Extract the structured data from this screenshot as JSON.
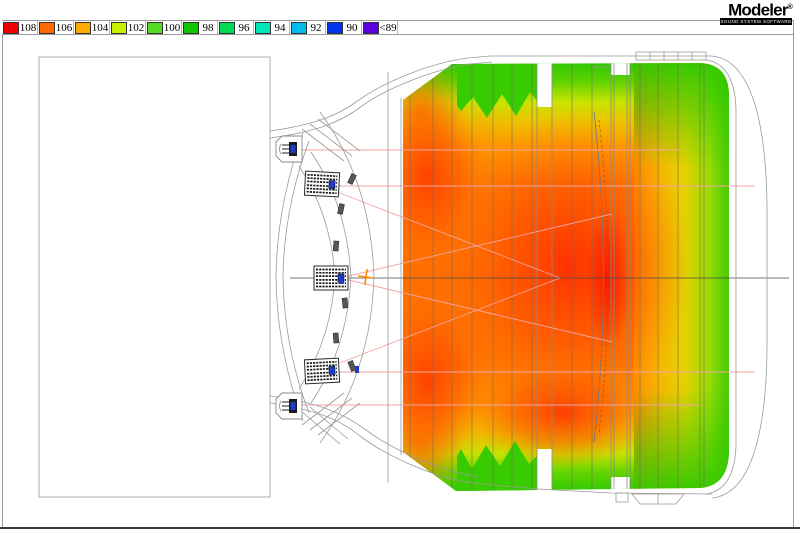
{
  "app": {
    "brand": "Modeler",
    "registered_mark": "®",
    "tagline": "SOUND SYSTEM SOFTWARE"
  },
  "legend": {
    "entries": [
      {
        "label": "108",
        "color": "#ee0000"
      },
      {
        "label": "106",
        "color": "#ff6a00"
      },
      {
        "label": "104",
        "color": "#ffaa00"
      },
      {
        "label": "102",
        "color": "#c8f000"
      },
      {
        "label": "100",
        "color": "#55dd22"
      },
      {
        "label": "98",
        "color": "#11c500"
      },
      {
        "label": "96",
        "color": "#00dd55"
      },
      {
        "label": "94",
        "color": "#00e4b8"
      },
      {
        "label": "92",
        "color": "#00bbee"
      },
      {
        "label": "90",
        "color": "#0033ee"
      },
      {
        "label": "<89",
        "color": "#5b00dd"
      }
    ]
  },
  "map_colors": {
    "hot": "#ff3000",
    "warm": "#ff7a00",
    "cool": "#2fc800",
    "aim_line": "#f2a5a5",
    "outline": "#9a9a9a"
  }
}
